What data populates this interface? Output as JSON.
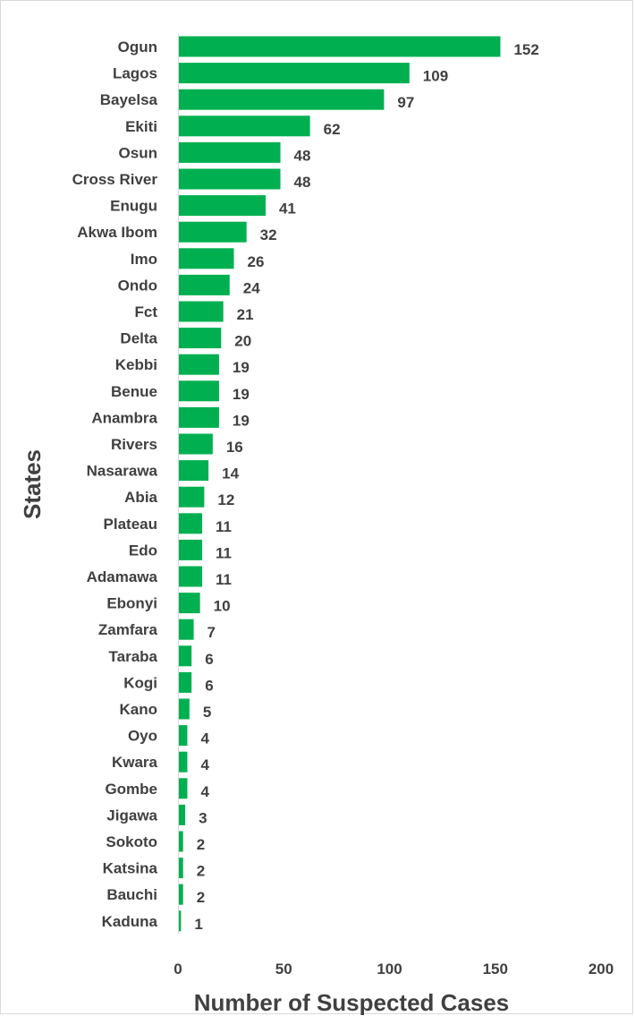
{
  "chart_data": {
    "type": "bar",
    "orientation": "horizontal",
    "categories": [
      "Ogun",
      "Lagos",
      "Bayelsa",
      "Ekiti",
      "Osun",
      "Cross River",
      "Enugu",
      "Akwa Ibom",
      "Imo",
      "Ondo",
      "Fct",
      "Delta",
      "Kebbi",
      "Benue",
      "Anambra",
      "Rivers",
      "Nasarawa",
      "Abia",
      "Plateau",
      "Edo",
      "Adamawa",
      "Ebonyi",
      "Zamfara",
      "Taraba",
      "Kogi",
      "Kano",
      "Oyo",
      "Kwara",
      "Gombe",
      "Jigawa",
      "Sokoto",
      "Katsina",
      "Bauchi",
      "Kaduna"
    ],
    "values": [
      152,
      109,
      97,
      62,
      48,
      48,
      41,
      32,
      26,
      24,
      21,
      20,
      19,
      19,
      19,
      16,
      14,
      12,
      11,
      11,
      11,
      10,
      7,
      6,
      6,
      5,
      4,
      4,
      4,
      3,
      2,
      2,
      2,
      1
    ],
    "xlabel": "Number of Suspected Cases",
    "ylabel": "States",
    "xlim": [
      0,
      200
    ],
    "xticks": [
      0,
      50,
      100,
      150,
      200
    ],
    "data_labels": true,
    "grid": false,
    "legend": "none",
    "bar_color": "#00b050",
    "text_color": "#404040"
  }
}
